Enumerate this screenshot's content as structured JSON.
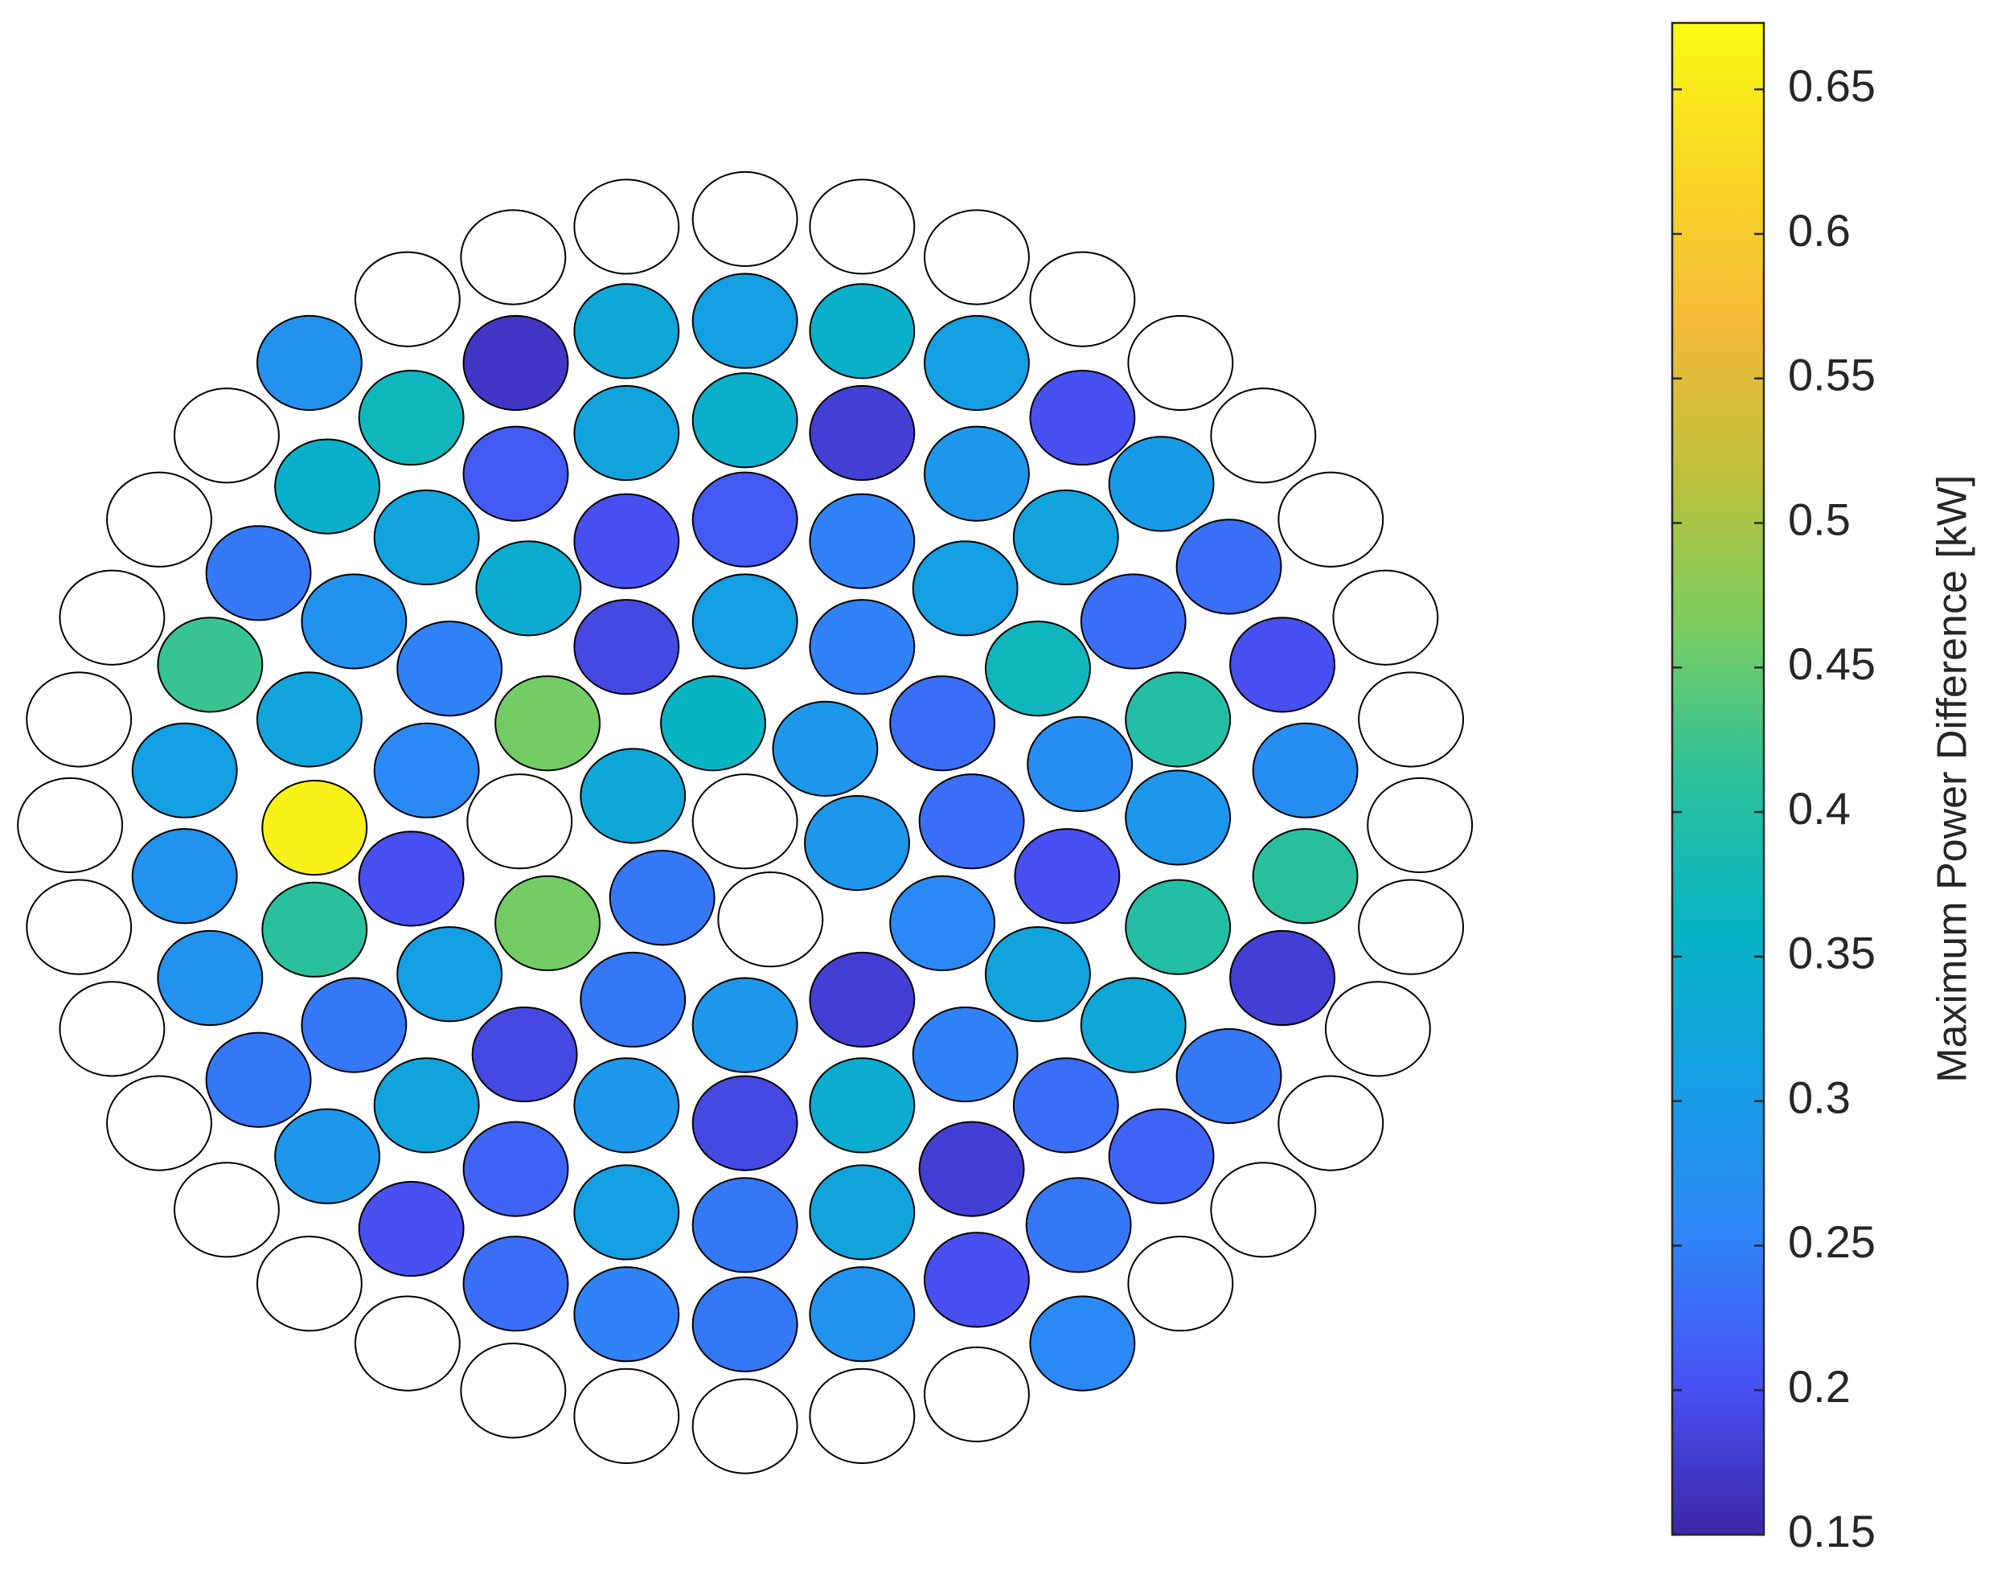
{
  "chart_data": {
    "type": "circle-map",
    "x": [
      585,
      492,
      677,
      403,
      767,
      320,
      850,
      927,
      178,
      992,
      125,
      1045,
      88,
      1088,
      62,
      1108,
      55,
      1115,
      62,
      1108,
      88,
      1082,
      125,
      1045,
      178,
      992,
      243,
      927,
      320,
      403,
      767,
      492,
      585,
      677,
      408,
      585,
      605,
      243,
      405,
      492,
      585,
      677,
      767,
      323,
      405,
      492,
      585,
      677,
      850,
      257,
      767,
      912,
      335,
      492,
      585,
      677,
      837,
      203,
      415,
      758,
      965,
      278,
      492,
      585,
      677,
      890,
      165,
      353,
      815,
      1007,
      243,
      430,
      560,
      648,
      740,
      925,
      145,
      335,
      497,
      848,
      1025,
      247,
      673,
      763,
      925,
      145,
      323,
      838,
      1025,
      520,
      247,
      430,
      740,
      925,
      165,
      353,
      497,
      585,
      677,
      815,
      1007,
      278,
      412,
      758,
      890,
      203,
      335,
      492,
      585,
      677,
      837,
      965,
      257,
      405,
      763,
      912,
      492,
      585,
      677,
      323,
      847,
      405,
      492,
      585,
      677,
      767,
      850
    ],
    "y": [
      172,
      178,
      178,
      202,
      202,
      235,
      235,
      285,
      342,
      342,
      408,
      408,
      485,
      485,
      565,
      565,
      648,
      648,
      728,
      728,
      808,
      808,
      882,
      882,
      950,
      950,
      1008,
      1008,
      1055,
      1092,
      1095,
      1112,
      1120,
      1112,
      645,
      645,
      722,
      285,
      285,
      260,
      252,
      260,
      285,
      328,
      372,
      340,
      330,
      340,
      328,
      382,
      372,
      380,
      422,
      425,
      408,
      425,
      422,
      450,
      462,
      462,
      445,
      488,
      508,
      488,
      508,
      488,
      522,
      525,
      525,
      522,
      565,
      568,
      568,
      588,
      568,
      565,
      605,
      605,
      625,
      600,
      605,
      650,
      662,
      645,
      642,
      688,
      690,
      688,
      688,
      705,
      730,
      725,
      725,
      728,
      768,
      765,
      785,
      805,
      785,
      765,
      768,
      805,
      828,
      828,
      805,
      848,
      868,
      868,
      882,
      868,
      868,
      845,
      908,
      918,
      918,
      908,
      952,
      962,
      952,
      965,
      962,
      1008,
      1032,
      1040,
      1032,
      1005,
      1055
    ],
    "values": [
      null,
      null,
      null,
      null,
      null,
      null,
      null,
      null,
      null,
      null,
      null,
      null,
      null,
      null,
      null,
      null,
      null,
      null,
      null,
      null,
      null,
      null,
      null,
      null,
      null,
      null,
      null,
      null,
      null,
      null,
      null,
      null,
      null,
      null,
      null,
      null,
      null,
      0.28,
      0.17,
      0.33,
      0.31,
      0.35,
      0.31,
      0.37,
      0.21,
      0.32,
      0.35,
      0.18,
      0.2,
      0.35,
      0.29,
      0.3,
      0.32,
      0.2,
      0.21,
      0.25,
      0.32,
      0.24,
      0.34,
      0.31,
      0.23,
      0.28,
      0.19,
      0.31,
      0.25,
      0.23,
      0.42,
      0.25,
      0.37,
      0.2,
      0.32,
      0.46,
      0.36,
      0.29,
      0.23,
      0.4,
      0.31,
      0.26,
      0.33,
      0.27,
      0.27,
      0.66,
      0.29,
      0.23,
      0.29,
      0.28,
      0.2,
      0.2,
      0.41,
      0.24,
      0.41,
      0.46,
      0.26,
      0.4,
      0.28,
      0.31,
      0.24,
      0.29,
      0.18,
      0.32,
      0.18,
      0.24,
      0.19,
      0.25,
      0.33,
      0.24,
      0.32,
      0.29,
      0.19,
      0.34,
      0.23,
      0.24,
      0.29,
      0.22,
      0.18,
      0.22,
      0.31,
      0.24,
      0.32,
      0.2,
      0.24,
      0.23,
      0.25,
      0.24,
      0.28,
      0.2,
      0.26
    ],
    "colorbar": {
      "label": "Maximum Power Difference [kW]",
      "clim": [
        0.15,
        0.673
      ],
      "ticks": [
        0.15,
        0.2,
        0.25,
        0.3,
        0.35,
        0.4,
        0.45,
        0.5,
        0.55,
        0.6,
        0.65
      ],
      "colormap": "parula"
    }
  }
}
